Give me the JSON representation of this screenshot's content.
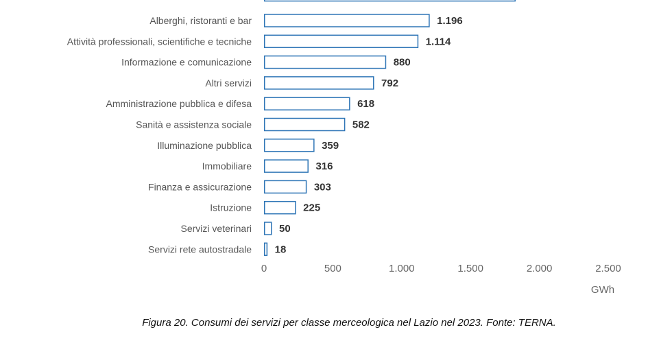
{
  "chart_data": {
    "type": "bar",
    "orientation": "horizontal",
    "categories": [
      "Alberghi, ristoranti e bar",
      "Attività professionali, scientifiche e tecniche",
      "Informazione e comunicazione",
      "Altri servizi",
      "Amministrazione pubblica e difesa",
      "Sanità e assistenza sociale",
      "Illuminazione pubblica",
      "Immobiliare",
      "Finanza e assicurazione",
      "Istruzione",
      "Servizi veterinari",
      "Servizi rete autostradale"
    ],
    "values": [
      1196,
      1114,
      880,
      792,
      618,
      582,
      359,
      316,
      303,
      225,
      50,
      18
    ],
    "value_labels": [
      "1.196",
      "1.114",
      "880",
      "792",
      "618",
      "582",
      "359",
      "316",
      "303",
      "225",
      "50",
      "18"
    ],
    "partial_bar_above": {
      "value": 1820
    },
    "xlim": [
      0,
      2500
    ],
    "xticks": [
      0,
      500,
      1000,
      1500,
      2000,
      2500
    ],
    "xtick_labels": [
      "0",
      "500",
      "1.000",
      "1.500",
      "2.000",
      "2.500"
    ],
    "xlabel": "GWh",
    "grid": false,
    "bar_fill": "#ffffff",
    "bar_stroke": "#2e75b6"
  },
  "caption": "Figura 20. Consumi dei servizi per classe merceologica nel Lazio nel 2023. Fonte: TERNA."
}
